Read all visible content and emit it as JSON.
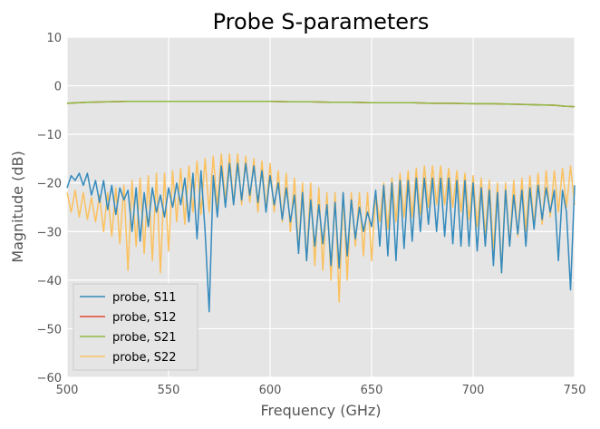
{
  "chart_data": {
    "type": "line",
    "title": "Probe S-parameters",
    "xlabel": "Frequency (GHz)",
    "ylabel": "Magnitude (dB)",
    "xlim": [
      500,
      750
    ],
    "ylim": [
      -60,
      10
    ],
    "xticks": [
      500,
      550,
      600,
      650,
      700,
      750
    ],
    "yticks": [
      10,
      0,
      -10,
      -20,
      -30,
      -40,
      -50,
      -60
    ],
    "xtick_labels": [
      "500",
      "550",
      "600",
      "650",
      "700",
      "750"
    ],
    "ytick_labels": [
      "10",
      "0",
      "−10",
      "−20",
      "−30",
      "−40",
      "−50",
      "−60"
    ],
    "grid": true,
    "legend_position": "lower-left",
    "colors": {
      "S11": "#348ABD",
      "S12": "#E24A33",
      "S21": "#8EBA42",
      "S22": "#FBC15E",
      "plot_bg": "#E5E5E5",
      "grid": "#FFFFFF"
    },
    "series": [
      {
        "name": "probe, S11",
        "color": "#348ABD",
        "x": [
          500,
          502,
          504,
          506,
          508,
          510,
          512,
          514,
          516,
          518,
          520,
          522,
          524,
          526,
          528,
          530,
          532,
          534,
          536,
          538,
          540,
          542,
          544,
          546,
          548,
          550,
          552,
          554,
          556,
          558,
          560,
          562,
          564,
          566,
          568,
          570,
          572,
          574,
          576,
          578,
          580,
          582,
          584,
          586,
          588,
          590,
          592,
          594,
          596,
          598,
          600,
          602,
          604,
          606,
          608,
          610,
          612,
          614,
          616,
          618,
          620,
          622,
          624,
          626,
          628,
          630,
          632,
          634,
          636,
          638,
          640,
          642,
          644,
          646,
          648,
          650,
          652,
          654,
          656,
          658,
          660,
          662,
          664,
          666,
          668,
          670,
          672,
          674,
          676,
          678,
          680,
          682,
          684,
          686,
          688,
          690,
          692,
          694,
          696,
          698,
          700,
          702,
          704,
          706,
          708,
          710,
          712,
          714,
          716,
          718,
          720,
          722,
          724,
          726,
          728,
          730,
          732,
          734,
          736,
          738,
          740,
          742,
          744,
          746,
          748,
          750
        ],
        "y": [
          -21.0,
          -18.5,
          -19.5,
          -18.0,
          -20.5,
          -18.0,
          -22.5,
          -19.5,
          -24.0,
          -19.5,
          -25.5,
          -20.5,
          -26.5,
          -21.0,
          -23.5,
          -21.5,
          -30.0,
          -21.0,
          -32.0,
          -22.0,
          -29.0,
          -21.0,
          -26.0,
          -22.5,
          -27.0,
          -21.0,
          -25.0,
          -20.0,
          -24.5,
          -19.0,
          -28.0,
          -18.0,
          -31.5,
          -17.5,
          -30.0,
          -46.5,
          -18.5,
          -27.0,
          -16.5,
          -25.0,
          -16.0,
          -24.5,
          -16.0,
          -23.5,
          -16.0,
          -22.5,
          -16.5,
          -24.0,
          -17.5,
          -26.0,
          -18.5,
          -24.5,
          -20.0,
          -27.5,
          -21.0,
          -28.0,
          -22.5,
          -34.5,
          -22.0,
          -36.0,
          -23.5,
          -33.0,
          -24.5,
          -32.5,
          -24.5,
          -37.0,
          -24.0,
          -37.5,
          -22.0,
          -35.0,
          -23.5,
          -31.5,
          -25.0,
          -30.0,
          -26.0,
          -29.0,
          -21.5,
          -33.0,
          -20.5,
          -35.0,
          -20.0,
          -36.0,
          -19.5,
          -33.5,
          -19.5,
          -32.0,
          -19.0,
          -30.0,
          -19.0,
          -28.5,
          -19.0,
          -30.0,
          -19.0,
          -31.0,
          -19.0,
          -32.5,
          -19.5,
          -33.0,
          -19.5,
          -33.0,
          -20.0,
          -34.0,
          -21.0,
          -33.0,
          -21.5,
          -37.0,
          -22.0,
          -38.5,
          -21.5,
          -33.0,
          -22.5,
          -30.5,
          -21.5,
          -33.0,
          -21.0,
          -29.5,
          -20.5,
          -27.5,
          -21.0,
          -26.0,
          -21.5,
          -36.0,
          -21.5,
          -26.0,
          -42.0,
          -20.5
        ]
      },
      {
        "name": "probe, S12",
        "color": "#E24A33",
        "x": [
          500,
          510,
          520,
          530,
          540,
          550,
          560,
          570,
          580,
          590,
          600,
          610,
          620,
          630,
          640,
          650,
          660,
          670,
          680,
          690,
          700,
          710,
          720,
          730,
          740,
          745,
          750
        ],
        "y": [
          -3.6,
          -3.4,
          -3.3,
          -3.2,
          -3.2,
          -3.2,
          -3.2,
          -3.2,
          -3.2,
          -3.2,
          -3.2,
          -3.3,
          -3.3,
          -3.4,
          -3.4,
          -3.5,
          -3.5,
          -3.5,
          -3.6,
          -3.6,
          -3.7,
          -3.7,
          -3.8,
          -3.9,
          -4.0,
          -4.2,
          -4.3
        ]
      },
      {
        "name": "probe, S21",
        "color": "#8EBA42",
        "x": [
          500,
          510,
          520,
          530,
          540,
          550,
          560,
          570,
          580,
          590,
          600,
          610,
          620,
          630,
          640,
          650,
          660,
          670,
          680,
          690,
          700,
          710,
          720,
          730,
          740,
          745,
          750
        ],
        "y": [
          -3.6,
          -3.4,
          -3.3,
          -3.2,
          -3.2,
          -3.2,
          -3.2,
          -3.2,
          -3.2,
          -3.2,
          -3.2,
          -3.3,
          -3.3,
          -3.4,
          -3.4,
          -3.5,
          -3.5,
          -3.5,
          -3.6,
          -3.6,
          -3.7,
          -3.7,
          -3.8,
          -3.9,
          -4.0,
          -4.2,
          -4.3
        ]
      },
      {
        "name": "probe, S22",
        "color": "#FBC15E",
        "x": [
          500,
          502,
          504,
          506,
          508,
          510,
          512,
          514,
          516,
          518,
          520,
          522,
          524,
          526,
          528,
          530,
          532,
          534,
          536,
          538,
          540,
          542,
          544,
          546,
          548,
          550,
          552,
          554,
          556,
          558,
          560,
          562,
          564,
          566,
          568,
          570,
          572,
          574,
          576,
          578,
          580,
          582,
          584,
          586,
          588,
          590,
          592,
          594,
          596,
          598,
          600,
          602,
          604,
          606,
          608,
          610,
          612,
          614,
          616,
          618,
          620,
          622,
          624,
          626,
          628,
          630,
          632,
          634,
          636,
          638,
          640,
          642,
          644,
          646,
          648,
          650,
          652,
          654,
          656,
          658,
          660,
          662,
          664,
          666,
          668,
          670,
          672,
          674,
          676,
          678,
          680,
          682,
          684,
          686,
          688,
          690,
          692,
          694,
          696,
          698,
          700,
          702,
          704,
          706,
          708,
          710,
          712,
          714,
          716,
          718,
          720,
          722,
          724,
          726,
          728,
          730,
          732,
          734,
          736,
          738,
          740,
          742,
          744,
          746,
          748,
          750
        ],
        "y": [
          -22.0,
          -26.0,
          -21.5,
          -27.0,
          -22.0,
          -27.5,
          -23.0,
          -28.0,
          -22.5,
          -30.0,
          -22.0,
          -31.0,
          -21.0,
          -32.5,
          -20.5,
          -38.0,
          -19.5,
          -33.0,
          -19.0,
          -34.5,
          -18.5,
          -36.0,
          -18.0,
          -38.5,
          -18.0,
          -34.0,
          -17.5,
          -28.0,
          -17.0,
          -28.5,
          -16.5,
          -26.0,
          -15.5,
          -26.5,
          -15.0,
          -26.0,
          -14.5,
          -25.0,
          -14.0,
          -24.0,
          -14.0,
          -24.5,
          -14.0,
          -24.5,
          -14.5,
          -24.0,
          -15.0,
          -26.0,
          -15.5,
          -25.5,
          -16.0,
          -26.0,
          -17.5,
          -28.0,
          -18.0,
          -30.0,
          -19.0,
          -34.0,
          -20.0,
          -36.0,
          -20.0,
          -37.0,
          -21.0,
          -38.0,
          -22.0,
          -40.0,
          -22.0,
          -44.5,
          -22.0,
          -40.0,
          -22.0,
          -33.0,
          -22.0,
          -35.0,
          -22.0,
          -36.0,
          -22.0,
          -28.0,
          -20.0,
          -29.5,
          -19.0,
          -28.0,
          -18.0,
          -27.0,
          -17.5,
          -27.0,
          -17.0,
          -26.5,
          -16.5,
          -25.0,
          -16.5,
          -24.5,
          -16.5,
          -24.5,
          -17.0,
          -25.0,
          -17.5,
          -26.0,
          -18.0,
          -27.5,
          -18.5,
          -29.0,
          -19.0,
          -31.0,
          -19.5,
          -34.0,
          -20.0,
          -38.5,
          -20.0,
          -33.0,
          -19.5,
          -31.0,
          -19.0,
          -30.0,
          -18.5,
          -29.0,
          -18.0,
          -28.5,
          -17.5,
          -27.0,
          -17.5,
          -26.0,
          -17.0,
          -25.0,
          -16.5,
          -24.5
        ]
      }
    ]
  }
}
